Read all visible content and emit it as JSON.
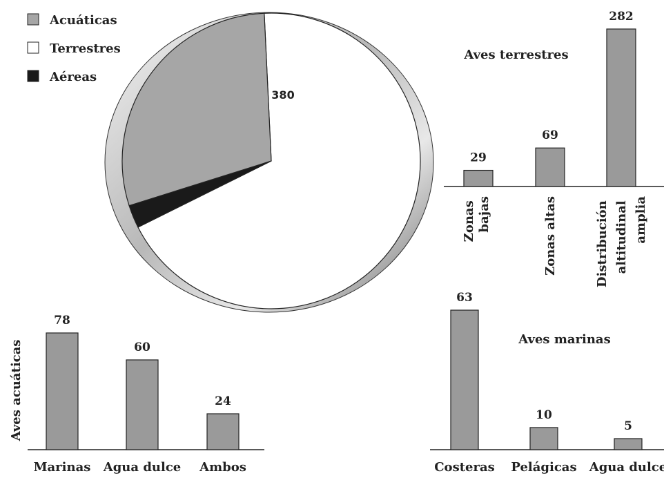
{
  "colors": {
    "acuaticas": "#a6a6a6",
    "terrestres": "#ffffff",
    "aereas": "#1a1a1a",
    "bar": "#9a9a9a"
  },
  "legend": [
    {
      "label": "Acuáticas",
      "color": "#a6a6a6"
    },
    {
      "label": "Terrestres",
      "color": "#ffffff"
    },
    {
      "label": "Aéreas",
      "color": "#1a1a1a"
    }
  ],
  "chart_data": [
    {
      "type": "pie",
      "categories": [
        "Terrestres",
        "Aéreas",
        "Acuáticas"
      ],
      "values": [
        380,
        14,
        162
      ],
      "colors": [
        "#ffffff",
        "#1a1a1a",
        "#a6a6a6"
      ],
      "legend": "top-left"
    },
    {
      "type": "bar",
      "title": "Aves terrestres",
      "categories": [
        "Zonas bajas",
        "Zonas altas",
        "Distribución altitudinal amplia"
      ],
      "category_lines": [
        [
          "Zonas",
          "bajas"
        ],
        [
          "Zonas altas"
        ],
        [
          "Distribución",
          "altitudinal",
          "amplia"
        ]
      ],
      "values": [
        29,
        69,
        282
      ],
      "ylim": [
        0,
        282
      ]
    },
    {
      "type": "bar",
      "ylabel": "Aves acuáticas",
      "categories": [
        "Marinas",
        "Agua dulce",
        "Ambos"
      ],
      "values": [
        78,
        60,
        24
      ],
      "ylim": [
        0,
        78
      ]
    },
    {
      "type": "bar",
      "title": "Aves marinas",
      "categories": [
        "Costeras",
        "Pelágicas",
        "Agua dulce"
      ],
      "values": [
        63,
        10,
        5
      ],
      "ylim": [
        0,
        63
      ]
    }
  ]
}
